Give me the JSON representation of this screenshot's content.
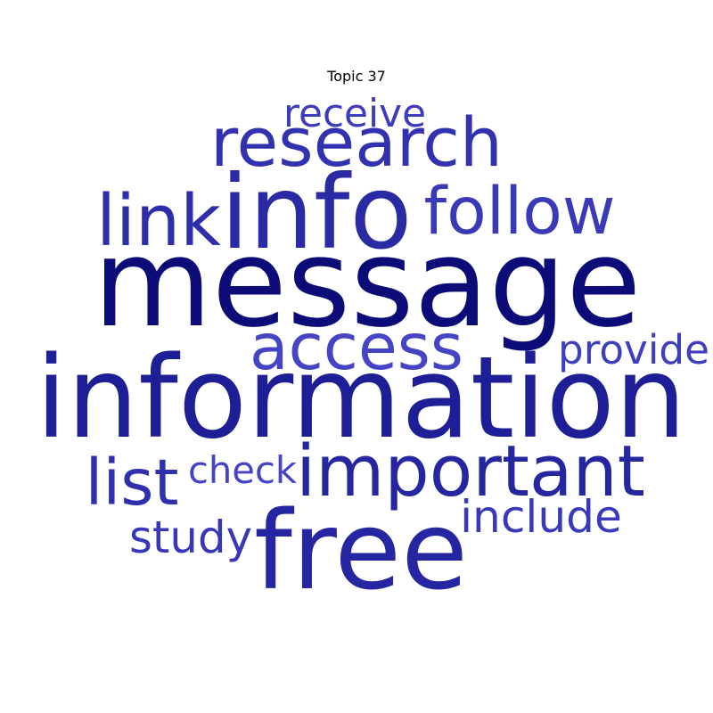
{
  "chart_data": {
    "type": "wordcloud",
    "title": "Topic 37",
    "words": [
      {
        "text": "message",
        "weight": 1.0,
        "color": "#0c0c78"
      },
      {
        "text": "information",
        "weight": 0.96,
        "color": "#1e1e96"
      },
      {
        "text": "info",
        "weight": 0.82,
        "color": "#2a2aa4"
      },
      {
        "text": "free",
        "weight": 0.8,
        "color": "#2626a2"
      },
      {
        "text": "important",
        "weight": 0.66,
        "color": "#2626a0"
      },
      {
        "text": "research",
        "weight": 0.58,
        "color": "#3232b0"
      },
      {
        "text": "follow",
        "weight": 0.54,
        "color": "#3a3ab8"
      },
      {
        "text": "link",
        "weight": 0.52,
        "color": "#2e2eac"
      },
      {
        "text": "list",
        "weight": 0.5,
        "color": "#3030ae"
      },
      {
        "text": "access",
        "weight": 0.49,
        "color": "#4444c4"
      },
      {
        "text": "include",
        "weight": 0.38,
        "color": "#3a3ab8"
      },
      {
        "text": "study",
        "weight": 0.36,
        "color": "#3838b6"
      },
      {
        "text": "receive",
        "weight": 0.35,
        "color": "#3c3cbc"
      },
      {
        "text": "provide",
        "weight": 0.35,
        "color": "#3e3ebe"
      },
      {
        "text": "check",
        "weight": 0.33,
        "color": "#4444c4"
      }
    ]
  }
}
